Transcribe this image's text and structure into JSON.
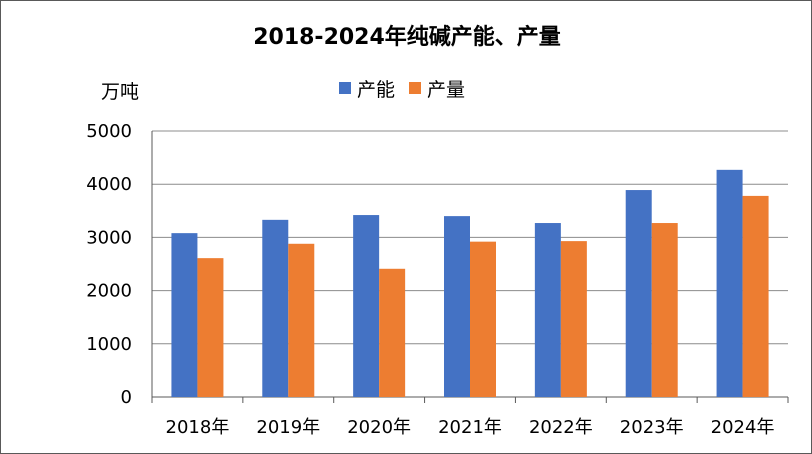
{
  "chart_data": {
    "type": "bar",
    "title": "2018-2024年纯碱产能、产量",
    "ylabel": "万吨",
    "categories": [
      "2018年",
      "2019年",
      "2020年",
      "2021年",
      "2022年",
      "2023年",
      "2024年"
    ],
    "series": [
      {
        "name": "产能",
        "color": "#4472C4",
        "values": [
          3080,
          3330,
          3420,
          3400,
          3270,
          3890,
          4270
        ]
      },
      {
        "name": "产量",
        "color": "#ED7D31",
        "values": [
          2610,
          2880,
          2410,
          2920,
          2930,
          3270,
          3780
        ]
      }
    ],
    "ylim": [
      0,
      5000
    ],
    "yticks": [
      0,
      1000,
      2000,
      3000,
      4000,
      5000
    ],
    "grid": true,
    "legend_position": "top-center"
  }
}
